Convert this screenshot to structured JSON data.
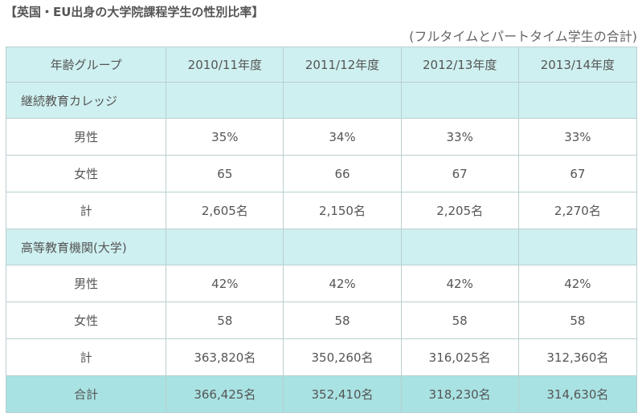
{
  "title": "【英国・EU出身の大学院課程学生の性別比率】",
  "subtitle": "(フルタイムとパートタイム学生の合計)",
  "chart_data": {
    "type": "table",
    "columns": [
      "年齢グループ",
      "2010/11年度",
      "2011/12年度",
      "2012/13年度",
      "2013/14年度"
    ],
    "sections": [
      {
        "label": "継続教育カレッジ",
        "rows": [
          {
            "label": "男性",
            "values": [
              "35%",
              "34%",
              "33%",
              "33%"
            ]
          },
          {
            "label": "女性",
            "values": [
              "65",
              "66",
              "67",
              "67"
            ]
          },
          {
            "label": "計",
            "values": [
              "2,605名",
              "2,150名",
              "2,205名",
              "2,270名"
            ]
          }
        ]
      },
      {
        "label": "高等教育機関(大学)",
        "rows": [
          {
            "label": "男性",
            "values": [
              "42%",
              "42%",
              "42%",
              "42%"
            ]
          },
          {
            "label": "女性",
            "values": [
              "58",
              "58",
              "58",
              "58"
            ]
          },
          {
            "label": "計",
            "values": [
              "363,820名",
              "350,260名",
              "316,025名",
              "312,360名"
            ]
          }
        ]
      }
    ],
    "total": {
      "label": "合計",
      "values": [
        "366,425名",
        "352,410名",
        "318,230名",
        "314,630名"
      ]
    }
  },
  "colors": {
    "header_bg": "#cff0f0",
    "section_bg": "#cff0f0",
    "total_bg": "#a9e2e3",
    "border": "#b9cfd0",
    "text": "#555555"
  }
}
